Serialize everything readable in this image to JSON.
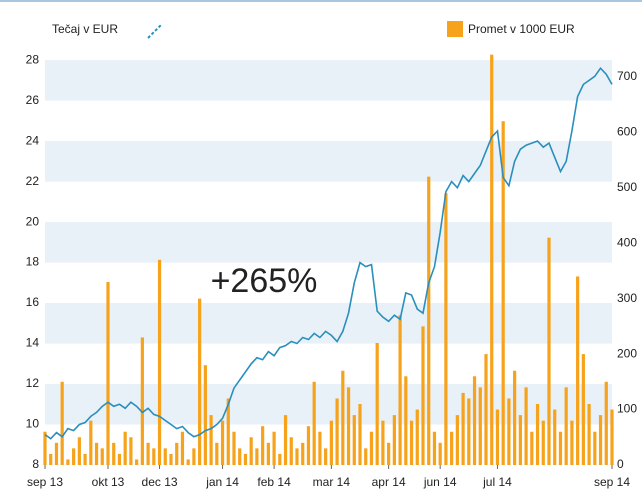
{
  "chart_data": {
    "type": "combo",
    "annotation": "+265%",
    "x": [
      0,
      1,
      2,
      3,
      4,
      5,
      6,
      7,
      8,
      9,
      10,
      11,
      12,
      13,
      14,
      15,
      16,
      17,
      18,
      19,
      20,
      21,
      22,
      23,
      24,
      25,
      26,
      27,
      28,
      29,
      30,
      31,
      32,
      33,
      34,
      35,
      36,
      37,
      38,
      39,
      40,
      41,
      42,
      43,
      44,
      45,
      46,
      47,
      48,
      49,
      50,
      51,
      52,
      53,
      54,
      55,
      56,
      57,
      58,
      59,
      60,
      61,
      62,
      63,
      64,
      65,
      66,
      67,
      68,
      69,
      70,
      71,
      72,
      73,
      74,
      75,
      76,
      77,
      78,
      79,
      80,
      81,
      82,
      83,
      84,
      85,
      86,
      87,
      88,
      89,
      90,
      91,
      92,
      93,
      94,
      95,
      96,
      97,
      98,
      99
    ],
    "xlim": [
      0,
      99
    ],
    "xticks": [
      {
        "value": 0,
        "label": "sep 13"
      },
      {
        "value": 11,
        "label": "okt 13"
      },
      {
        "value": 20,
        "label": "dec 13"
      },
      {
        "value": 31,
        "label": "jan 14"
      },
      {
        "value": 40,
        "label": "feb 14"
      },
      {
        "value": 50,
        "label": "mar 14"
      },
      {
        "value": 60,
        "label": "apr 14"
      },
      {
        "value": 69,
        "label": "jun 14"
      },
      {
        "value": 79,
        "label": "jul 14"
      },
      {
        "value": 99,
        "label": "sep 14"
      }
    ],
    "ylim": [
      8,
      28.6
    ],
    "yticks": [
      8,
      10,
      12,
      14,
      16,
      18,
      20,
      22,
      24,
      26,
      28
    ],
    "y2lim": [
      0,
      752
    ],
    "y2ticks": [
      0,
      100,
      200,
      300,
      400,
      500,
      600,
      700
    ],
    "grid": "bands",
    "series": [
      {
        "name": "Tečaj v EUR",
        "type": "line",
        "color": "#2a8fbd",
        "values": [
          9.5,
          9.3,
          9.6,
          9.4,
          9.8,
          9.7,
          10.0,
          10.1,
          10.4,
          10.6,
          10.9,
          11.1,
          10.9,
          11.0,
          10.8,
          11.1,
          10.9,
          10.6,
          10.8,
          10.5,
          10.4,
          10.2,
          10.0,
          9.8,
          9.9,
          9.6,
          9.4,
          9.5,
          9.7,
          9.8,
          10.0,
          10.3,
          11.0,
          11.8,
          12.2,
          12.6,
          13.0,
          13.3,
          13.2,
          13.6,
          13.4,
          13.8,
          13.9,
          14.1,
          14.0,
          14.3,
          14.2,
          14.5,
          14.3,
          14.6,
          14.4,
          14.1,
          14.6,
          15.5,
          17.0,
          18.0,
          17.8,
          17.9,
          15.6,
          15.3,
          15.1,
          15.4,
          15.2,
          16.5,
          16.4,
          15.7,
          15.5,
          17.0,
          17.8,
          19.5,
          21.5,
          22.0,
          21.7,
          22.3,
          22.0,
          22.4,
          22.8,
          23.5,
          24.2,
          24.5,
          22.2,
          21.8,
          23.0,
          23.6,
          23.8,
          23.9,
          24.0,
          23.7,
          23.9,
          23.2,
          22.5,
          23.0,
          24.5,
          26.2,
          26.8,
          27.0,
          27.2,
          27.6,
          27.3,
          26.8
        ]
      },
      {
        "name": "Promet v 1000 EUR",
        "type": "bar",
        "axis": "y2",
        "color": "#f7a21b",
        "values": [
          60,
          20,
          40,
          150,
          10,
          30,
          50,
          20,
          80,
          40,
          30,
          330,
          40,
          20,
          60,
          50,
          10,
          230,
          40,
          30,
          370,
          30,
          20,
          40,
          60,
          10,
          30,
          300,
          180,
          90,
          40,
          80,
          120,
          60,
          30,
          20,
          50,
          30,
          70,
          40,
          60,
          20,
          90,
          50,
          30,
          40,
          70,
          150,
          60,
          30,
          80,
          120,
          170,
          140,
          90,
          110,
          30,
          60,
          220,
          80,
          40,
          90,
          270,
          160,
          80,
          100,
          250,
          520,
          60,
          40,
          490,
          60,
          90,
          130,
          120,
          160,
          140,
          200,
          740,
          100,
          620,
          120,
          170,
          90,
          140,
          60,
          110,
          80,
          410,
          100,
          60,
          140,
          80,
          340,
          200,
          110,
          60,
          90,
          150,
          100
        ]
      }
    ]
  }
}
